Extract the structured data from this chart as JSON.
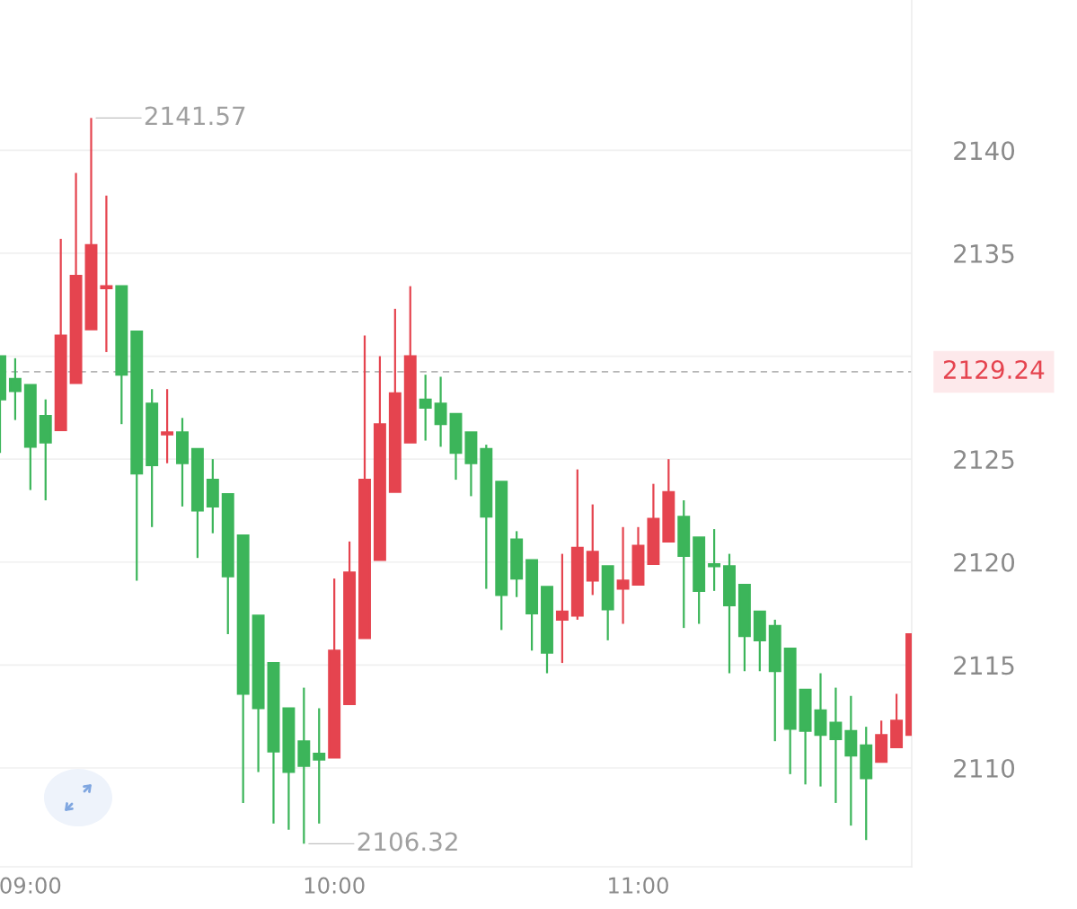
{
  "chart_data": {
    "type": "candlestick",
    "x": [
      8.9,
      8.95,
      9.0,
      9.05,
      9.1,
      9.15,
      9.2,
      9.25,
      9.3,
      9.35,
      9.4,
      9.45,
      9.5,
      9.55,
      9.6,
      9.65,
      9.7,
      9.75,
      9.8,
      9.85,
      9.9,
      9.95,
      10.0,
      10.05,
      10.1,
      10.15,
      10.2,
      10.25,
      10.3,
      10.35,
      10.4,
      10.45,
      10.5,
      10.55,
      10.6,
      10.65,
      10.7,
      10.75,
      10.8,
      10.85,
      10.9,
      10.95,
      11.0,
      11.05,
      11.1,
      11.15,
      11.2,
      11.25,
      11.3,
      11.35,
      11.4,
      11.45,
      11.5,
      11.55,
      11.6,
      11.65,
      11.7,
      11.75,
      11.8,
      11.85,
      11.9
    ],
    "ohlc": [
      [
        2130.0,
        2130.0,
        2125.3,
        2127.9
      ],
      [
        2128.9,
        2129.9,
        2126.9,
        2128.3
      ],
      [
        2128.6,
        2128.6,
        2123.5,
        2125.6
      ],
      [
        2127.1,
        2127.9,
        2123.0,
        2125.8
      ],
      [
        2126.4,
        2135.7,
        2126.4,
        2131.0
      ],
      [
        2128.7,
        2138.9,
        2128.7,
        2133.9
      ],
      [
        2131.3,
        2141.57,
        2131.3,
        2135.4
      ],
      [
        2133.3,
        2137.8,
        2130.2,
        2133.4
      ],
      [
        2133.4,
        2133.4,
        2126.7,
        2129.1
      ],
      [
        2131.2,
        2131.2,
        2119.1,
        2124.3
      ],
      [
        2127.7,
        2128.4,
        2121.7,
        2124.7
      ],
      [
        2126.2,
        2128.4,
        2124.8,
        2126.3
      ],
      [
        2126.3,
        2127.0,
        2122.7,
        2124.8
      ],
      [
        2125.5,
        2125.5,
        2120.2,
        2122.5
      ],
      [
        2124.0,
        2125.0,
        2121.4,
        2122.7
      ],
      [
        2123.3,
        2123.3,
        2116.5,
        2119.3
      ],
      [
        2121.3,
        2121.3,
        2108.3,
        2113.6
      ],
      [
        2117.4,
        2117.4,
        2109.8,
        2112.9
      ],
      [
        2115.1,
        2115.1,
        2107.3,
        2110.8
      ],
      [
        2112.9,
        2112.9,
        2107.0,
        2109.8
      ],
      [
        2111.3,
        2113.9,
        2106.32,
        2110.1
      ],
      [
        2110.7,
        2112.9,
        2107.3,
        2110.4
      ],
      [
        2110.5,
        2119.2,
        2110.5,
        2115.7
      ],
      [
        2113.1,
        2121.0,
        2113.1,
        2119.5
      ],
      [
        2116.3,
        2131.0,
        2116.3,
        2124.0
      ],
      [
        2120.1,
        2130.0,
        2120.1,
        2126.7
      ],
      [
        2123.4,
        2132.3,
        2123.4,
        2128.2
      ],
      [
        2125.8,
        2133.4,
        2125.8,
        2130.0
      ],
      [
        2127.9,
        2129.1,
        2125.9,
        2127.5
      ],
      [
        2127.7,
        2129.0,
        2125.6,
        2126.7
      ],
      [
        2127.2,
        2127.2,
        2124.0,
        2125.3
      ],
      [
        2126.3,
        2126.3,
        2123.2,
        2124.8
      ],
      [
        2125.5,
        2125.7,
        2118.7,
        2122.2
      ],
      [
        2123.9,
        2123.9,
        2116.7,
        2118.4
      ],
      [
        2121.1,
        2121.5,
        2118.3,
        2119.2
      ],
      [
        2120.1,
        2120.1,
        2115.7,
        2117.5
      ],
      [
        2118.8,
        2118.8,
        2114.6,
        2115.6
      ],
      [
        2117.2,
        2120.4,
        2115.1,
        2117.6
      ],
      [
        2117.4,
        2124.5,
        2117.2,
        2120.7
      ],
      [
        2119.1,
        2122.8,
        2118.4,
        2120.5
      ],
      [
        2119.8,
        2119.8,
        2116.2,
        2117.7
      ],
      [
        2118.7,
        2121.7,
        2117.0,
        2119.1
      ],
      [
        2118.9,
        2121.7,
        2118.9,
        2120.8
      ],
      [
        2119.9,
        2123.8,
        2119.9,
        2122.1
      ],
      [
        2121.0,
        2125.0,
        2121.0,
        2123.4
      ],
      [
        2122.2,
        2123.0,
        2116.8,
        2120.3
      ],
      [
        2121.2,
        2121.2,
        2117.0,
        2118.6
      ],
      [
        2119.9,
        2121.6,
        2118.6,
        2119.8
      ],
      [
        2119.8,
        2120.4,
        2114.6,
        2117.9
      ],
      [
        2118.9,
        2118.9,
        2114.7,
        2116.4
      ],
      [
        2117.6,
        2117.6,
        2114.7,
        2116.2
      ],
      [
        2116.9,
        2117.2,
        2111.3,
        2114.7
      ],
      [
        2115.8,
        2115.8,
        2109.7,
        2111.9
      ],
      [
        2113.8,
        2113.8,
        2109.2,
        2111.8
      ],
      [
        2112.8,
        2114.6,
        2109.1,
        2111.6
      ],
      [
        2112.2,
        2113.9,
        2108.3,
        2111.4
      ],
      [
        2111.8,
        2113.5,
        2107.2,
        2110.6
      ],
      [
        2111.1,
        2112.0,
        2106.5,
        2109.5
      ],
      [
        2110.3,
        2112.3,
        2110.3,
        2111.6
      ],
      [
        2111.0,
        2113.6,
        2111.0,
        2112.3
      ],
      [
        2111.6,
        2116.5,
        2111.6,
        2116.5
      ]
    ],
    "colors": [
      "#3cb55a",
      "#3cb55a",
      "#3cb55a",
      "#3cb55a",
      "#e5444f",
      "#e5444f",
      "#e5444f",
      "#e5444f",
      "#3cb55a",
      "#3cb55a",
      "#3cb55a",
      "#e5444f",
      "#3cb55a",
      "#3cb55a",
      "#3cb55a",
      "#3cb55a",
      "#3cb55a",
      "#3cb55a",
      "#3cb55a",
      "#3cb55a",
      "#3cb55a",
      "#3cb55a",
      "#e5444f",
      "#e5444f",
      "#e5444f",
      "#e5444f",
      "#e5444f",
      "#e5444f",
      "#3cb55a",
      "#3cb55a",
      "#3cb55a",
      "#3cb55a",
      "#3cb55a",
      "#3cb55a",
      "#3cb55a",
      "#3cb55a",
      "#3cb55a",
      "#e5444f",
      "#e5444f",
      "#e5444f",
      "#3cb55a",
      "#e5444f",
      "#e5444f",
      "#e5444f",
      "#e5444f",
      "#3cb55a",
      "#3cb55a",
      "#3cb55a",
      "#3cb55a",
      "#3cb55a",
      "#3cb55a",
      "#3cb55a",
      "#3cb55a",
      "#3cb55a",
      "#3cb55a",
      "#3cb55a",
      "#3cb55a",
      "#3cb55a",
      "#e5444f",
      "#e5444f",
      "#e5444f"
    ],
    "xlim": [
      8.9,
      11.9
    ],
    "xticks": [
      {
        "value": 9,
        "label": "09:00"
      },
      {
        "value": 10,
        "label": "10:00"
      },
      {
        "value": 11,
        "label": "11:00"
      }
    ],
    "ylim": [
      2105.2,
      2147.3
    ],
    "yticks": [
      2110,
      2115,
      2120,
      2125,
      {
        "value": 2130,
        "label": null
      },
      2135,
      2140
    ],
    "grid": "y",
    "ref_lines": [
      {
        "axis": "y",
        "value": 2129.24,
        "label": "2129.24",
        "color": "#b5b5b5",
        "line_style": "dashed"
      }
    ],
    "annotations": [
      {
        "text": "2141.57",
        "x": 9.2,
        "y": 2141.57
      },
      {
        "text": "2106.32",
        "x": 9.9,
        "y": 2106.32
      }
    ]
  }
}
